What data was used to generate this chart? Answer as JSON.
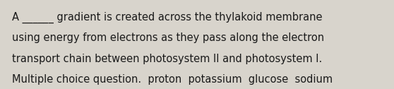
{
  "background_color": "#d8d4cc",
  "text_color": "#1a1a1a",
  "lines": [
    "A ______ gradient is created across the thylakoid membrane",
    "using energy from electrons as they pass along the electron",
    "transport chain between photosystem II and photosystem I.",
    "Multiple choice question.  proton  potassium  glucose  sodium"
  ],
  "font_size": 10.5,
  "font_family": "DejaVu Sans",
  "fig_width": 5.58,
  "fig_height": 1.26,
  "dpi": 100
}
